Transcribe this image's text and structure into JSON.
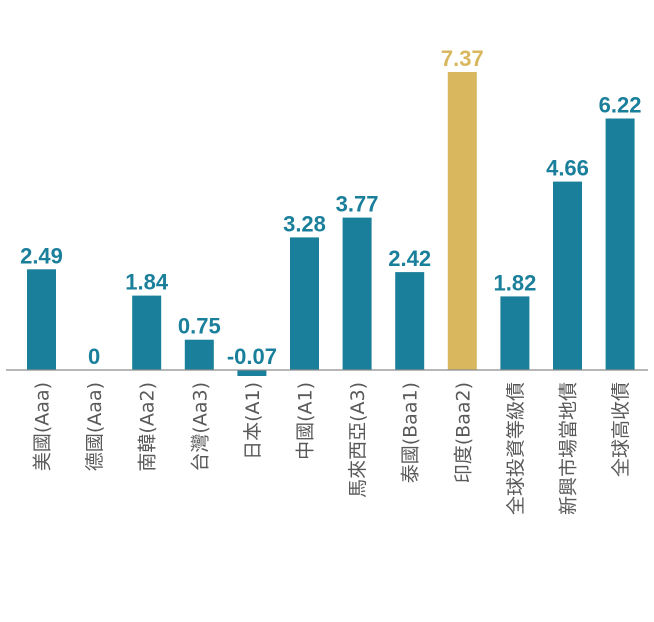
{
  "chart_data": {
    "type": "bar",
    "categories": [
      "美國(Aaa)",
      "德國(Aaa)",
      "南韓(Aa2)",
      "台灣(Aa3)",
      "日本(A1)",
      "中國(A1)",
      "馬來西亞(A3)",
      "泰國(Baa1)",
      "印度(Baa2)",
      "全球投資等級債",
      "新興市場當地債",
      "全球高收債"
    ],
    "values": [
      2.49,
      0,
      1.84,
      0.75,
      -0.07,
      3.28,
      3.77,
      2.42,
      7.37,
      1.82,
      4.66,
      6.22
    ],
    "value_labels": [
      "2.49",
      "0",
      "1.84",
      "0.75",
      "-0.07",
      "3.28",
      "3.77",
      "2.42",
      "7.37",
      "1.82",
      "4.66",
      "6.22"
    ],
    "highlight_index": 8,
    "colors": {
      "bar": "#1a7f9a",
      "highlight": "#d9b75f",
      "axis": "#8c8c8c",
      "category_text": "#595959"
    },
    "ylim": [
      -0.3,
      7.37
    ],
    "grid": false,
    "legend": "none"
  }
}
